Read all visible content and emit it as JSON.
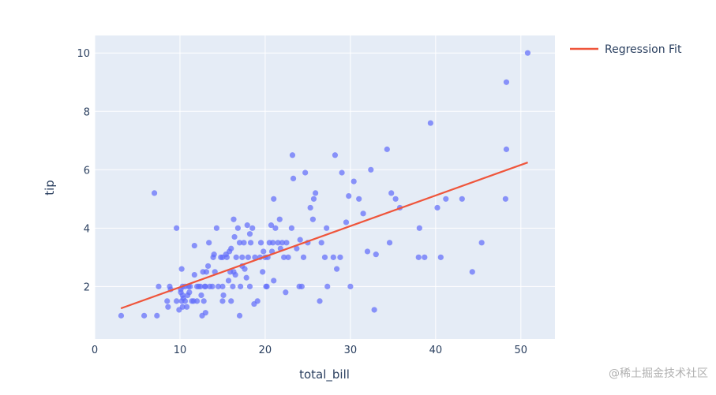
{
  "chart_data": {
    "type": "scatter",
    "xlabel": "total_bill",
    "ylabel": "tip",
    "xlim": [
      0,
      54
    ],
    "ylim": [
      0.2,
      10.6
    ],
    "x_ticks": [
      0,
      10,
      20,
      30,
      40,
      50
    ],
    "y_ticks": [
      2,
      4,
      6,
      8,
      10
    ],
    "grid": true,
    "legend_position": "top-right",
    "colors": {
      "plot_bg": "#e5ecf6",
      "grid": "#ffffff",
      "points": "#636efa",
      "line": "#ef553b",
      "text": "#2a3f5f"
    },
    "series": [
      {
        "type": "scatter",
        "points": [
          [
            3.1,
            1.0
          ],
          [
            5.8,
            1.0
          ],
          [
            7.3,
            1.0
          ],
          [
            7.5,
            2.0
          ],
          [
            7.0,
            5.2
          ],
          [
            8.5,
            1.5
          ],
          [
            8.6,
            1.3
          ],
          [
            8.8,
            2.0
          ],
          [
            8.9,
            1.9
          ],
          [
            9.6,
            4.0
          ],
          [
            9.6,
            1.5
          ],
          [
            9.9,
            1.2
          ],
          [
            10.1,
            1.8
          ],
          [
            10.3,
            1.7
          ],
          [
            10.3,
            2.0
          ],
          [
            10.3,
            1.3
          ],
          [
            10.1,
            1.9
          ],
          [
            10.2,
            1.5
          ],
          [
            10.2,
            2.6
          ],
          [
            10.4,
            1.6
          ],
          [
            10.6,
            1.5
          ],
          [
            10.6,
            2.0
          ],
          [
            10.8,
            1.3
          ],
          [
            10.9,
            1.7
          ],
          [
            11.0,
            2.0
          ],
          [
            11.1,
            1.8
          ],
          [
            11.2,
            2.0
          ],
          [
            11.4,
            1.5
          ],
          [
            11.6,
            1.5
          ],
          [
            11.7,
            3.4
          ],
          [
            11.7,
            2.4
          ],
          [
            12.0,
            2.0
          ],
          [
            12.0,
            1.5
          ],
          [
            12.2,
            2.0
          ],
          [
            12.4,
            2.0
          ],
          [
            12.5,
            1.7
          ],
          [
            12.6,
            1.0
          ],
          [
            12.7,
            2.5
          ],
          [
            12.8,
            1.5
          ],
          [
            12.9,
            2.0
          ],
          [
            13.0,
            1.1
          ],
          [
            13.0,
            2.0
          ],
          [
            13.1,
            2.5
          ],
          [
            13.3,
            2.7
          ],
          [
            13.4,
            3.5
          ],
          [
            13.5,
            2.0
          ],
          [
            13.8,
            2.0
          ],
          [
            13.9,
            3.0
          ],
          [
            14.0,
            3.1
          ],
          [
            14.1,
            2.5
          ],
          [
            14.3,
            4.0
          ],
          [
            14.5,
            2.0
          ],
          [
            14.8,
            3.0
          ],
          [
            15.0,
            2.0
          ],
          [
            15.0,
            3.0
          ],
          [
            15.0,
            1.5
          ],
          [
            15.1,
            1.7
          ],
          [
            15.4,
            3.1
          ],
          [
            15.5,
            3.0
          ],
          [
            15.7,
            2.2
          ],
          [
            15.8,
            3.2
          ],
          [
            15.9,
            2.5
          ],
          [
            16.0,
            1.5
          ],
          [
            16.0,
            3.3
          ],
          [
            16.2,
            2.0
          ],
          [
            16.3,
            4.3
          ],
          [
            16.3,
            2.5
          ],
          [
            16.4,
            3.7
          ],
          [
            16.5,
            2.4
          ],
          [
            16.6,
            3.0
          ],
          [
            16.8,
            4.0
          ],
          [
            17.0,
            3.5
          ],
          [
            17.0,
            1.0
          ],
          [
            17.1,
            2.0
          ],
          [
            17.3,
            3.0
          ],
          [
            17.3,
            2.7
          ],
          [
            17.5,
            3.5
          ],
          [
            17.6,
            2.6
          ],
          [
            17.8,
            2.3
          ],
          [
            17.9,
            4.1
          ],
          [
            18.0,
            3.0
          ],
          [
            18.2,
            3.8
          ],
          [
            18.2,
            2.0
          ],
          [
            18.3,
            3.5
          ],
          [
            18.5,
            4.0
          ],
          [
            18.7,
            1.4
          ],
          [
            18.8,
            3.0
          ],
          [
            19.1,
            1.5
          ],
          [
            19.4,
            3.0
          ],
          [
            19.5,
            3.5
          ],
          [
            19.7,
            2.5
          ],
          [
            19.8,
            3.2
          ],
          [
            20.0,
            3.0
          ],
          [
            20.1,
            2.0
          ],
          [
            20.2,
            2.0
          ],
          [
            20.3,
            3.0
          ],
          [
            20.5,
            3.5
          ],
          [
            20.7,
            4.1
          ],
          [
            20.8,
            3.2
          ],
          [
            20.9,
            3.5
          ],
          [
            21.0,
            2.2
          ],
          [
            21.0,
            5.0
          ],
          [
            21.2,
            4.0
          ],
          [
            21.5,
            3.5
          ],
          [
            21.7,
            4.3
          ],
          [
            21.8,
            3.3
          ],
          [
            22.0,
            3.5
          ],
          [
            22.2,
            3.0
          ],
          [
            22.4,
            1.8
          ],
          [
            22.5,
            3.5
          ],
          [
            22.7,
            3.0
          ],
          [
            23.1,
            4.0
          ],
          [
            23.2,
            6.5
          ],
          [
            23.3,
            5.7
          ],
          [
            23.7,
            3.3
          ],
          [
            24.0,
            2.0
          ],
          [
            24.1,
            3.6
          ],
          [
            24.3,
            2.0
          ],
          [
            24.5,
            3.0
          ],
          [
            24.7,
            5.9
          ],
          [
            25.0,
            3.5
          ],
          [
            25.3,
            4.7
          ],
          [
            25.6,
            4.3
          ],
          [
            25.7,
            5.0
          ],
          [
            25.9,
            5.2
          ],
          [
            26.4,
            1.5
          ],
          [
            26.6,
            3.5
          ],
          [
            27.0,
            3.0
          ],
          [
            27.2,
            4.0
          ],
          [
            27.3,
            2.0
          ],
          [
            28.0,
            3.0
          ],
          [
            28.2,
            6.5
          ],
          [
            28.4,
            2.6
          ],
          [
            28.8,
            3.0
          ],
          [
            29.0,
            5.9
          ],
          [
            29.5,
            4.2
          ],
          [
            29.8,
            5.1
          ],
          [
            30.0,
            2.0
          ],
          [
            30.4,
            5.6
          ],
          [
            31.0,
            5.0
          ],
          [
            31.5,
            4.5
          ],
          [
            32.0,
            3.2
          ],
          [
            32.4,
            6.0
          ],
          [
            32.8,
            1.2
          ],
          [
            33.0,
            3.1
          ],
          [
            34.3,
            6.7
          ],
          [
            34.6,
            3.5
          ],
          [
            34.8,
            5.2
          ],
          [
            35.3,
            5.0
          ],
          [
            35.8,
            4.7
          ],
          [
            38.0,
            3.0
          ],
          [
            38.1,
            4.0
          ],
          [
            38.7,
            3.0
          ],
          [
            39.4,
            7.6
          ],
          [
            40.2,
            4.7
          ],
          [
            40.6,
            3.0
          ],
          [
            41.2,
            5.0
          ],
          [
            43.1,
            5.0
          ],
          [
            44.3,
            2.5
          ],
          [
            45.4,
            3.5
          ],
          [
            48.2,
            5.0
          ],
          [
            48.3,
            9.0
          ],
          [
            48.3,
            6.7
          ],
          [
            50.8,
            10.0
          ]
        ]
      },
      {
        "type": "line",
        "name": "Regression Fit",
        "x": [
          3.07,
          50.81
        ],
        "y": [
          1.25,
          6.25
        ]
      }
    ]
  },
  "watermark": "@稀土掘金技术社区"
}
